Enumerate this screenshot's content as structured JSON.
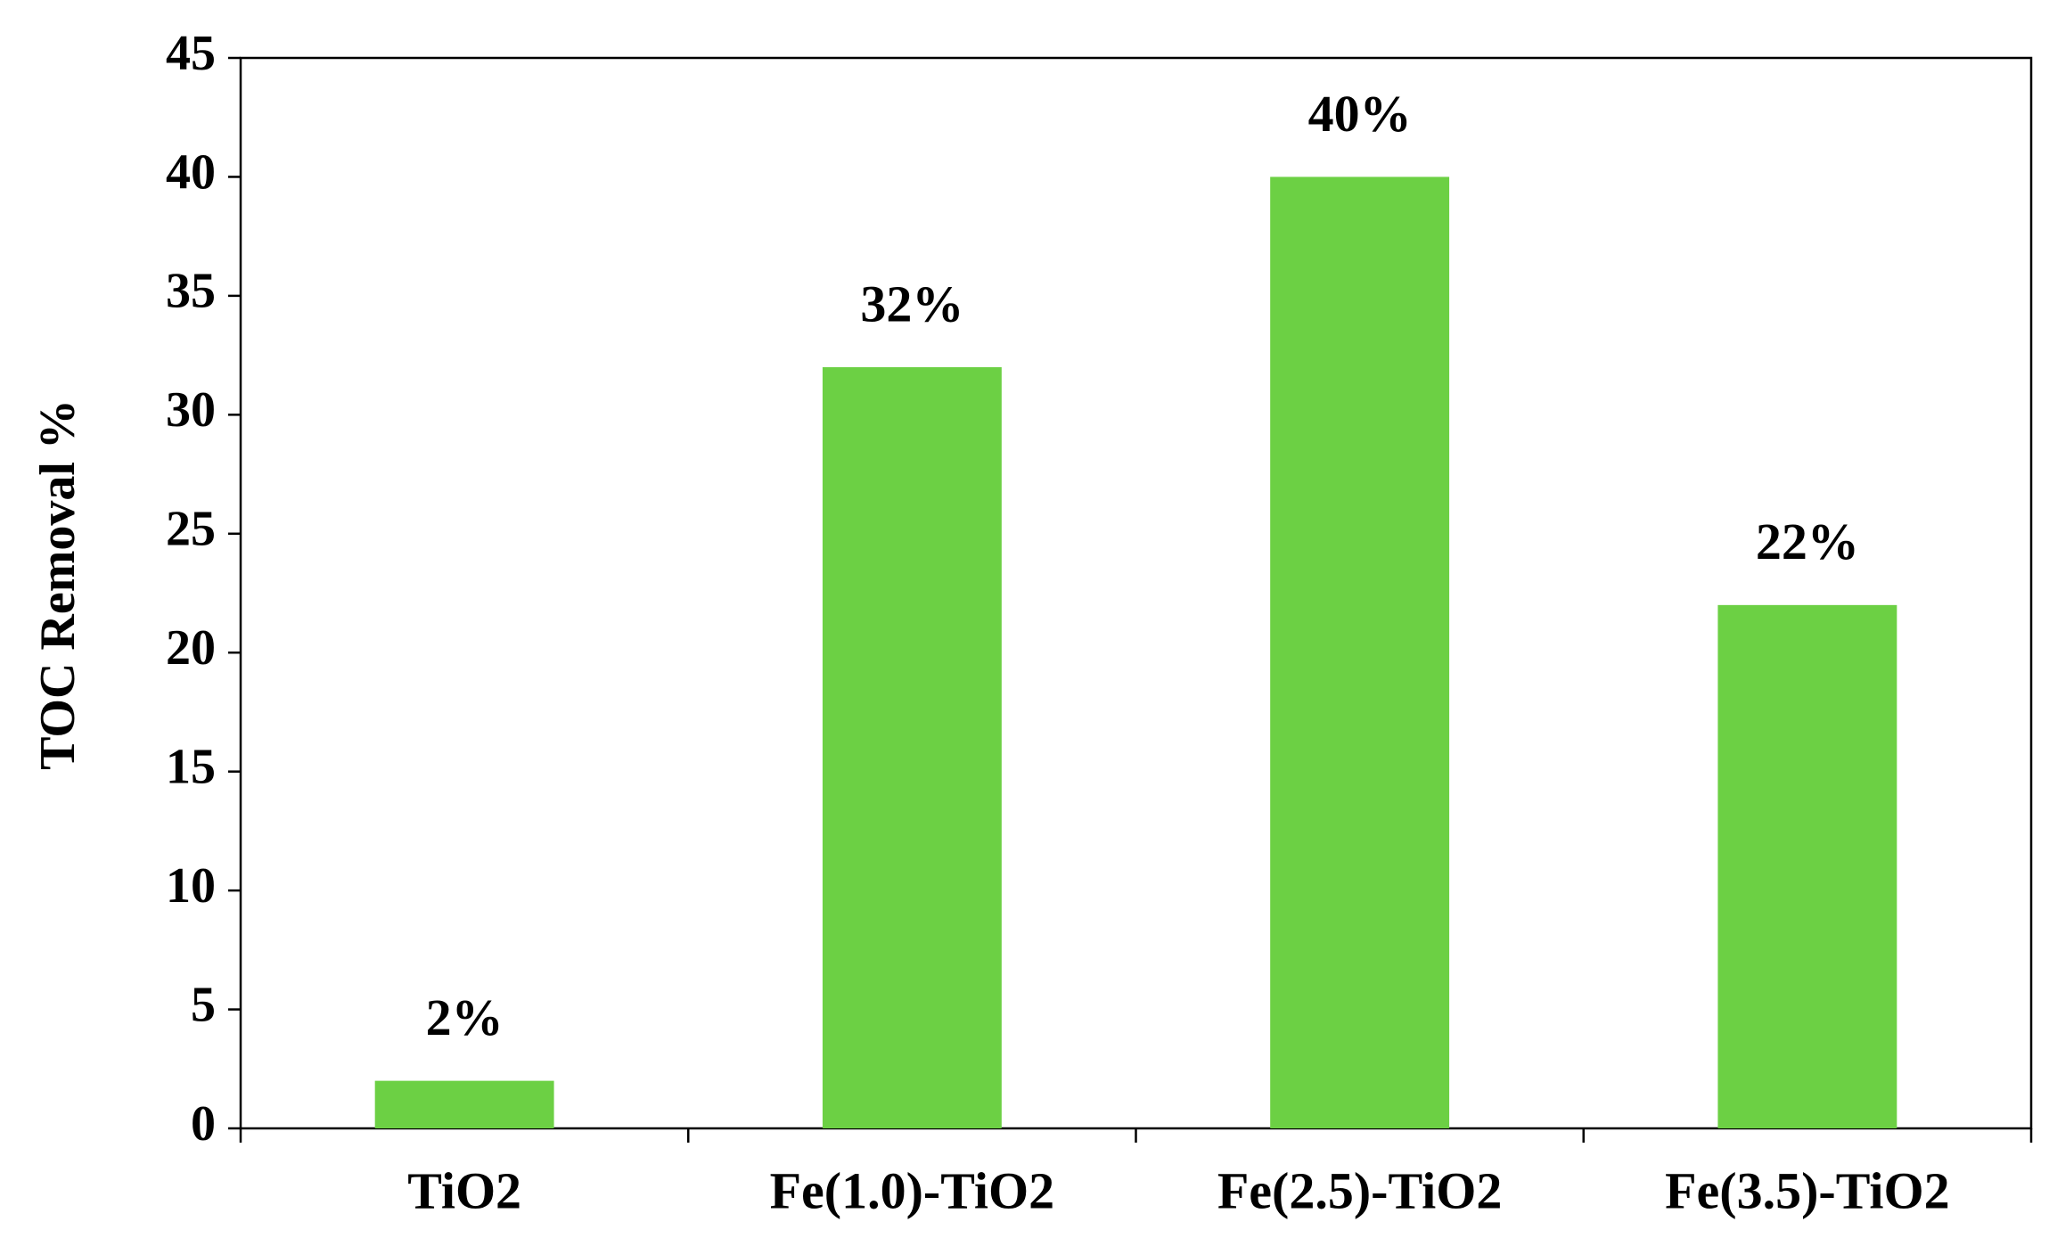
{
  "chart_data": {
    "type": "bar",
    "y_label": "TOC Removal %",
    "categories": [
      "TiO2",
      "Fe(1.0)-TiO2",
      "Fe(2.5)-TiO2",
      "Fe(3.5)-TiO2"
    ],
    "values": [
      2,
      32,
      40,
      22
    ],
    "value_labels": [
      "2%",
      "32%",
      "40%",
      "22%"
    ],
    "color": "#6cd044",
    "ylim": [
      0,
      45
    ],
    "yticks": [
      0,
      5,
      10,
      15,
      20,
      25,
      30,
      35,
      40,
      45
    ],
    "grid": false
  }
}
